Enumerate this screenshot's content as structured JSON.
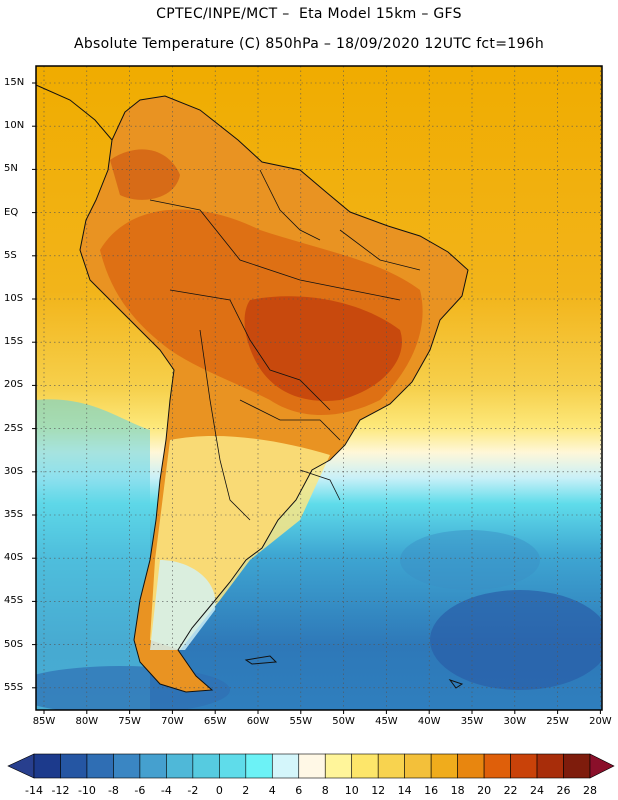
{
  "header": {
    "line1": "CPTEC/INPE/MCT –  Eta Model 15km – GFS",
    "line2": "Absolute Temperature (C) 850hPa – 18/09/2020 12UTC fct=196h"
  },
  "map": {
    "lat_labels": [
      "15N",
      "10N",
      "5N",
      "EQ",
      "5S",
      "10S",
      "15S",
      "20S",
      "25S",
      "30S",
      "35S",
      "40S",
      "45S",
      "50S",
      "55S"
    ],
    "lon_labels": [
      "85W",
      "80W",
      "75W",
      "70W",
      "65W",
      "60W",
      "55W",
      "50W",
      "45W",
      "40W",
      "35W",
      "30W",
      "25W",
      "20W"
    ],
    "gridlines": true,
    "colors": {
      "ocean_north": "#f0b000",
      "land_hot": "#e26a10",
      "land_hottest": "#c8400c",
      "ocean_south": "#39a9d6",
      "deep_cold": "#1f5fa6",
      "coast": "#111111"
    }
  },
  "colorbar": {
    "labels": [
      "-14",
      "-12",
      "-10",
      "-8",
      "-6",
      "-4",
      "-2",
      "0",
      "2",
      "4",
      "6",
      "8",
      "10",
      "12",
      "14",
      "16",
      "18",
      "20",
      "22",
      "24",
      "26",
      "28"
    ],
    "colors": [
      "#1c3a8c",
      "#2556a3",
      "#2f6eb4",
      "#3a86c3",
      "#45a0cf",
      "#4fb8d8",
      "#56cbe0",
      "#5fdcea",
      "#6cf2f6",
      "#d4f6fb",
      "#fff8e6",
      "#fff59a",
      "#fde66a",
      "#f8d34f",
      "#f3c03a",
      "#f0ac1c",
      "#e8860f",
      "#df5f0a",
      "#c94209",
      "#a82d0a",
      "#7e1c0c"
    ],
    "under_color": "#283f8e",
    "over_color": "#8a0f2a"
  }
}
